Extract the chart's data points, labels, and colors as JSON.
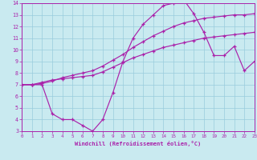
{
  "xlabel": "Windchill (Refroidissement éolien,°C)",
  "background_color": "#c9eaf0",
  "line_color": "#aa22aa",
  "grid_color": "#99ccdd",
  "xlim": [
    0,
    23
  ],
  "ylim": [
    3,
    14
  ],
  "xticks": [
    0,
    1,
    2,
    3,
    4,
    5,
    6,
    7,
    8,
    9,
    10,
    11,
    12,
    13,
    14,
    15,
    16,
    17,
    18,
    19,
    20,
    21,
    22,
    23
  ],
  "yticks": [
    3,
    4,
    5,
    6,
    7,
    8,
    9,
    10,
    11,
    12,
    13,
    14
  ],
  "lines": [
    {
      "x": [
        0,
        1,
        2,
        3,
        4,
        5,
        6,
        7,
        8,
        9,
        10,
        11,
        12,
        13,
        14,
        15,
        16,
        17,
        18,
        19,
        20,
        21,
        22,
        23
      ],
      "y": [
        7.0,
        7.0,
        7.0,
        4.5,
        4.0,
        4.0,
        3.5,
        3.0,
        4.0,
        6.3,
        9.0,
        11.0,
        12.2,
        13.0,
        13.8,
        14.0,
        14.3,
        13.1,
        11.5,
        9.5,
        9.5,
        10.3,
        8.2,
        9.0
      ]
    },
    {
      "x": [
        0,
        1,
        2,
        3,
        4,
        5,
        6,
        7,
        8,
        9,
        10,
        11,
        12,
        13,
        14,
        15,
        16,
        17,
        18,
        19,
        20,
        21,
        22,
        23
      ],
      "y": [
        7.0,
        7.0,
        7.2,
        7.4,
        7.5,
        7.6,
        7.7,
        7.8,
        8.1,
        8.5,
        8.9,
        9.3,
        9.6,
        9.9,
        10.2,
        10.4,
        10.6,
        10.8,
        11.0,
        11.1,
        11.2,
        11.3,
        11.4,
        11.5
      ]
    },
    {
      "x": [
        0,
        1,
        2,
        3,
        4,
        5,
        6,
        7,
        8,
        9,
        10,
        11,
        12,
        13,
        14,
        15,
        16,
        17,
        18,
        19,
        20,
        21,
        22,
        23
      ],
      "y": [
        7.0,
        7.0,
        7.1,
        7.3,
        7.6,
        7.8,
        8.0,
        8.2,
        8.6,
        9.1,
        9.6,
        10.2,
        10.7,
        11.2,
        11.6,
        12.0,
        12.3,
        12.5,
        12.7,
        12.8,
        12.9,
        13.0,
        13.0,
        13.1
      ]
    }
  ]
}
